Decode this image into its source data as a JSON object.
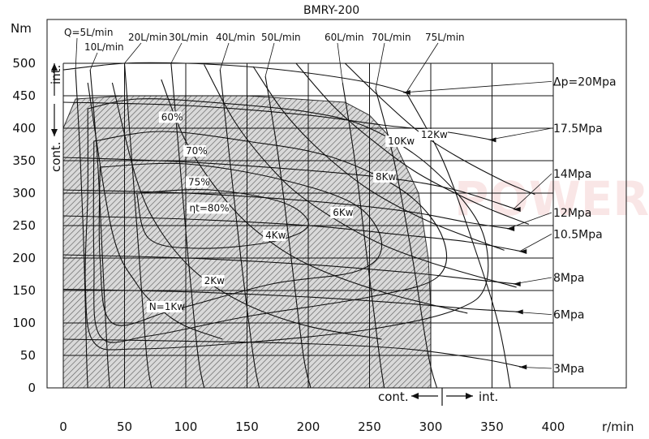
{
  "chart_data": {
    "type": "line",
    "title": "BMRY-200",
    "ylabel": "Nm",
    "xlabel": "r/min",
    "xlim": [
      0,
      400
    ],
    "ylim": [
      0,
      500
    ],
    "x_ticks": [
      "0",
      "50",
      "100",
      "150",
      "200",
      "250",
      "300",
      "350",
      "400"
    ],
    "y_ticks": [
      "0",
      "50",
      "100",
      "150",
      "200",
      "250",
      "300",
      "350",
      "400",
      "450",
      "500"
    ],
    "grid": true,
    "regions": {
      "continuous_label": "cont.",
      "intermittent_label": "int.",
      "continuous_torque_limit_nm": 450,
      "continuous_speed_limit_rpm": 300
    },
    "pressure_labels": [
      "Δp=20Mpa",
      "17.5Mpa",
      "14Mpa",
      "12Mpa",
      "10.5Mpa",
      "8Mpa",
      "6Mpa",
      "3Mpa"
    ],
    "flow_labels": [
      "Q=5L/min",
      "10L/min",
      "20L/min",
      "30L/min",
      "40L/min",
      "50L/min",
      "60L/min",
      "70L/min",
      "75L/min"
    ],
    "power_labels": [
      "N=1Kw",
      "2Kw",
      "4Kw",
      "6Kw",
      "8Kw",
      "10Kw",
      "12Kw"
    ],
    "efficiency_labels": [
      "60%",
      "70%",
      "75%",
      "ηt=80%"
    ],
    "pressure_curves": [
      {
        "name": "Δp=20Mpa",
        "points": [
          [
            0,
            490
          ],
          [
            50,
            500
          ],
          [
            100,
            500
          ],
          [
            150,
            495
          ],
          [
            200,
            485
          ],
          [
            250,
            470
          ],
          [
            280,
            455
          ]
        ]
      },
      {
        "name": "17.5Mpa",
        "points": [
          [
            0,
            440
          ],
          [
            100,
            435
          ],
          [
            200,
            420
          ],
          [
            260,
            405
          ],
          [
            310,
            395
          ],
          [
            350,
            382
          ]
        ]
      },
      {
        "name": "14Mpa",
        "points": [
          [
            0,
            355
          ],
          [
            100,
            348
          ],
          [
            200,
            335
          ],
          [
            270,
            322
          ],
          [
            320,
            305
          ],
          [
            370,
            275
          ]
        ]
      },
      {
        "name": "12Mpa",
        "points": [
          [
            0,
            305
          ],
          [
            100,
            300
          ],
          [
            200,
            288
          ],
          [
            280,
            272
          ],
          [
            330,
            255
          ],
          [
            365,
            245
          ]
        ]
      },
      {
        "name": "10.5Mpa",
        "points": [
          [
            0,
            265
          ],
          [
            100,
            260
          ],
          [
            200,
            250
          ],
          [
            280,
            235
          ],
          [
            330,
            225
          ],
          [
            375,
            210
          ]
        ]
      },
      {
        "name": "8Mpa",
        "points": [
          [
            0,
            205
          ],
          [
            100,
            200
          ],
          [
            200,
            190
          ],
          [
            280,
            178
          ],
          [
            330,
            168
          ],
          [
            370,
            160
          ]
        ]
      },
      {
        "name": "6Mpa",
        "points": [
          [
            0,
            152
          ],
          [
            100,
            148
          ],
          [
            200,
            140
          ],
          [
            280,
            130
          ],
          [
            330,
            122
          ],
          [
            372,
            117
          ]
        ]
      },
      {
        "name": "3Mpa",
        "points": [
          [
            0,
            75
          ],
          [
            100,
            72
          ],
          [
            200,
            68
          ],
          [
            280,
            60
          ],
          [
            340,
            45
          ],
          [
            375,
            32
          ]
        ]
      }
    ],
    "flow_curves": [
      {
        "name": "Q=5L/min",
        "points": [
          [
            10,
            490
          ],
          [
            14,
            350
          ],
          [
            17,
            200
          ],
          [
            19,
            50
          ],
          [
            20,
            0
          ]
        ]
      },
      {
        "name": "10L/min",
        "points": [
          [
            22,
            490
          ],
          [
            28,
            350
          ],
          [
            32,
            200
          ],
          [
            36,
            50
          ],
          [
            38,
            0
          ]
        ]
      },
      {
        "name": "20L/min",
        "points": [
          [
            50,
            500
          ],
          [
            56,
            350
          ],
          [
            62,
            200
          ],
          [
            68,
            50
          ],
          [
            72,
            0
          ]
        ]
      },
      {
        "name": "30L/min",
        "points": [
          [
            88,
            500
          ],
          [
            95,
            350
          ],
          [
            102,
            200
          ],
          [
            110,
            50
          ],
          [
            115,
            0
          ]
        ]
      },
      {
        "name": "40L/min",
        "points": [
          [
            128,
            490
          ],
          [
            136,
            350
          ],
          [
            145,
            200
          ],
          [
            155,
            50
          ],
          [
            160,
            0
          ]
        ]
      },
      {
        "name": "50L/min",
        "points": [
          [
            165,
            480
          ],
          [
            176,
            350
          ],
          [
            186,
            200
          ],
          [
            196,
            50
          ],
          [
            202,
            0
          ]
        ]
      },
      {
        "name": "60L/min",
        "points": [
          [
            228,
            470
          ],
          [
            238,
            350
          ],
          [
            248,
            200
          ],
          [
            258,
            50
          ],
          [
            262,
            0
          ]
        ]
      },
      {
        "name": "70L/min",
        "points": [
          [
            255,
            460
          ],
          [
            270,
            350
          ],
          [
            285,
            200
          ],
          [
            298,
            50
          ],
          [
            305,
            0
          ]
        ]
      },
      {
        "name": "75L/min",
        "points": [
          [
            280,
            455
          ],
          [
            310,
            350
          ],
          [
            335,
            220
          ],
          [
            355,
            100
          ],
          [
            365,
            0
          ]
        ]
      }
    ],
    "power_curves": [
      {
        "name": "N=1Kw",
        "points": [
          [
            20,
            470
          ],
          [
            40,
            240
          ],
          [
            60,
            160
          ],
          [
            80,
            120
          ],
          [
            100,
            95
          ],
          [
            130,
            75
          ]
        ]
      },
      {
        "name": "2Kw",
        "points": [
          [
            40,
            470
          ],
          [
            60,
            320
          ],
          [
            80,
            240
          ],
          [
            110,
            175
          ],
          [
            150,
            128
          ],
          [
            200,
            95
          ],
          [
            260,
            75
          ]
        ]
      },
      {
        "name": "4Kw",
        "points": [
          [
            80,
            475
          ],
          [
            100,
            380
          ],
          [
            130,
            295
          ],
          [
            160,
            238
          ],
          [
            200,
            190
          ],
          [
            260,
            148
          ],
          [
            330,
            115
          ]
        ]
      },
      {
        "name": "6Kw",
        "points": [
          [
            115,
            498
          ],
          [
            140,
            410
          ],
          [
            170,
            338
          ],
          [
            200,
            287
          ],
          [
            250,
            230
          ],
          [
            300,
            193
          ],
          [
            370,
            155
          ]
        ]
      },
      {
        "name": "8Kw",
        "points": [
          [
            155,
            495
          ],
          [
            180,
            425
          ],
          [
            210,
            365
          ],
          [
            250,
            305
          ],
          [
            300,
            255
          ],
          [
            360,
            212
          ]
        ]
      },
      {
        "name": "10Kw",
        "points": [
          [
            190,
            500
          ],
          [
            220,
            435
          ],
          [
            250,
            385
          ],
          [
            290,
            330
          ],
          [
            340,
            282
          ],
          [
            380,
            252
          ]
        ]
      },
      {
        "name": "12Kw",
        "points": [
          [
            230,
            500
          ],
          [
            260,
            445
          ],
          [
            290,
            395
          ],
          [
            320,
            358
          ],
          [
            360,
            318
          ],
          [
            385,
            298
          ]
        ]
      }
    ],
    "efficiency_contours": [
      {
        "name": "60%",
        "points": [
          [
            20,
            430
          ],
          [
            60,
            445
          ],
          [
            120,
            440
          ],
          [
            200,
            425
          ],
          [
            250,
            400
          ],
          [
            300,
            340
          ],
          [
            340,
            250
          ],
          [
            345,
            160
          ],
          [
            320,
            120
          ],
          [
            250,
            90
          ],
          [
            150,
            70
          ],
          [
            60,
            60
          ],
          [
            25,
            70
          ],
          [
            18,
            160
          ],
          [
            20,
            300
          ],
          [
            20,
            430
          ]
        ]
      },
      {
        "name": "70%",
        "points": [
          [
            25,
            380
          ],
          [
            80,
            395
          ],
          [
            150,
            380
          ],
          [
            220,
            355
          ],
          [
            280,
            300
          ],
          [
            310,
            230
          ],
          [
            305,
            170
          ],
          [
            250,
            140
          ],
          [
            150,
            110
          ],
          [
            70,
            80
          ],
          [
            30,
            80
          ],
          [
            25,
            200
          ],
          [
            25,
            380
          ]
        ]
      },
      {
        "name": "75%",
        "points": [
          [
            30,
            340
          ],
          [
            100,
            345
          ],
          [
            180,
            320
          ],
          [
            240,
            280
          ],
          [
            260,
            220
          ],
          [
            240,
            180
          ],
          [
            170,
            160
          ],
          [
            90,
            120
          ],
          [
            40,
            100
          ],
          [
            30,
            200
          ],
          [
            30,
            340
          ]
        ]
      },
      {
        "name": "ηt=80%",
        "points": [
          [
            60,
            300
          ],
          [
            120,
            305
          ],
          [
            180,
            285
          ],
          [
            200,
            250
          ],
          [
            170,
            225
          ],
          [
            110,
            215
          ],
          [
            70,
            230
          ],
          [
            60,
            300
          ]
        ]
      }
    ],
    "label_positions": {
      "pressure": [
        [
          390,
          472
        ],
        [
          400,
          400
        ],
        [
          400,
          330
        ],
        [
          400,
          270
        ],
        [
          400,
          237
        ],
        [
          400,
          170
        ],
        [
          400,
          113
        ],
        [
          400,
          30
        ]
      ],
      "power": [
        [
          70,
          120
        ],
        [
          115,
          160
        ],
        [
          165,
          230
        ],
        [
          220,
          265
        ],
        [
          255,
          320
        ],
        [
          265,
          375
        ],
        [
          292,
          385
        ]
      ],
      "efficiency": [
        [
          80,
          412
        ],
        [
          100,
          360
        ],
        [
          102,
          312
        ],
        [
          103,
          272
        ]
      ]
    }
  },
  "watermark": "POWER"
}
